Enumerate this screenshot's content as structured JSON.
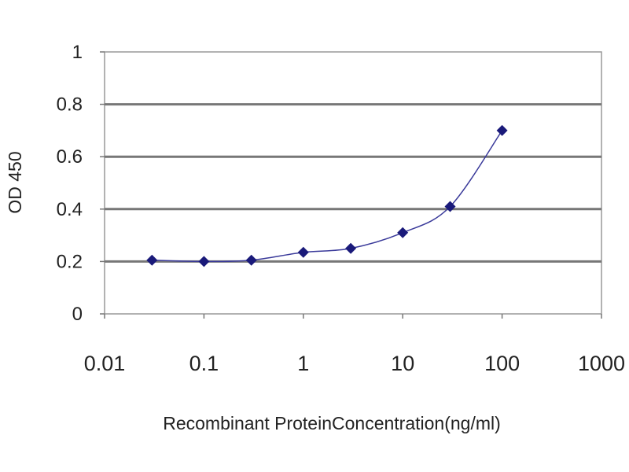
{
  "chart_data": {
    "type": "line",
    "title": "",
    "xlabel": "Recombinant ProteinConcentration(ng/ml)",
    "ylabel": "OD 450",
    "x_scale": "log",
    "xlim": [
      0.01,
      1000
    ],
    "ylim": [
      0,
      1
    ],
    "x_ticks": [
      "0.01",
      "0.1",
      "1",
      "10",
      "100",
      "1000"
    ],
    "y_ticks": [
      "0",
      "0.2",
      "0.4",
      "0.6",
      "0.8",
      "1"
    ],
    "grid": "horizontal",
    "legend": "none",
    "series": [
      {
        "color": "#1a1a7a",
        "marker": "diamond",
        "x": [
          0.03,
          0.1,
          0.3,
          1,
          3,
          10,
          30,
          100
        ],
        "y": [
          0.205,
          0.2,
          0.205,
          0.235,
          0.25,
          0.31,
          0.41,
          0.7
        ]
      }
    ]
  }
}
